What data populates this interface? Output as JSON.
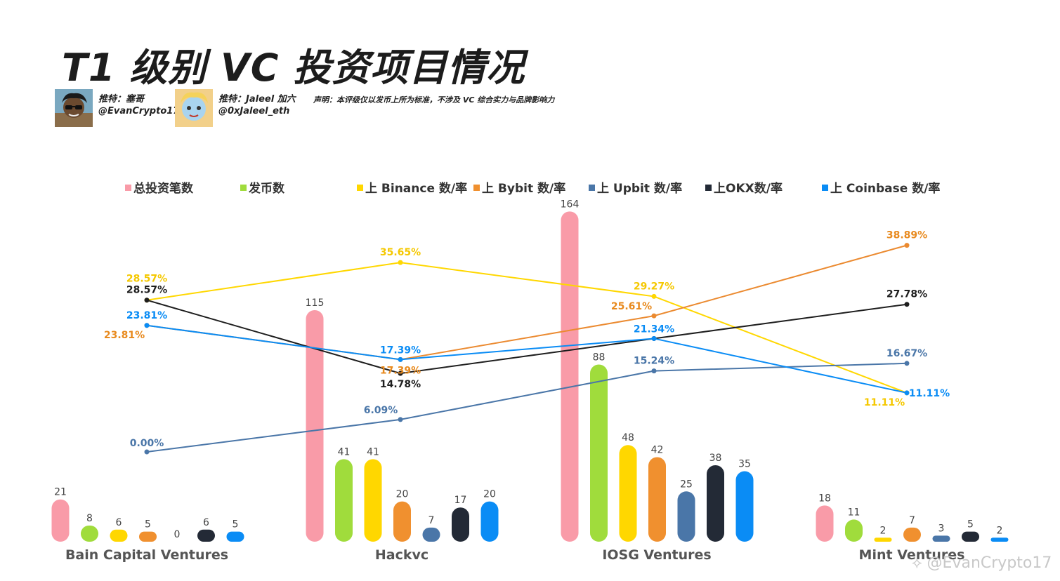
{
  "header": {
    "title": "T1 级别 VC 投资项目情况",
    "author1_line1": "推特：塞哥",
    "author1_line2": "@EvanCrypto17",
    "author2_line1": "推特：Jaleel 加六",
    "author2_line2": "@0xJaleel_eth",
    "disclaimer": "声明：本评级仅以发币上所为标准，不涉及 VC 综合实力与品牌影响力"
  },
  "watermark": "@EvanCrypto17",
  "chart_data": {
    "type": "bar",
    "categories": [
      "Bain Capital Ventures",
      "Hackvc",
      "IOSG Ventures",
      "Mint Ventures"
    ],
    "bar_series": [
      {
        "name": "总投资笔数",
        "color": "#F99BA8",
        "values": [
          21,
          115,
          164,
          18
        ]
      },
      {
        "name": "发币数",
        "color": "#A0DC3C",
        "values": [
          8,
          41,
          88,
          11
        ]
      },
      {
        "name": "上 Binance 数/率",
        "color": "#FFD700",
        "values": [
          6,
          41,
          48,
          2
        ]
      },
      {
        "name": "上 Bybit 数/率",
        "color": "#F0902F",
        "values": [
          5,
          20,
          42,
          7
        ]
      },
      {
        "name": "上 Upbit 数/率",
        "color": "#4A76A8",
        "values": [
          0,
          7,
          25,
          3
        ]
      },
      {
        "name": "上OKX数/率",
        "color": "#232A36",
        "values": [
          6,
          17,
          38,
          5
        ]
      },
      {
        "name": "上 Coinbase 数/率",
        "color": "#0A8CF5",
        "values": [
          5,
          20,
          35,
          2
        ]
      }
    ],
    "line_series": [
      {
        "name": "上 Binance 数/率",
        "color": "#FFD700",
        "label_color": "#F5C800",
        "values": [
          28.57,
          35.65,
          29.27,
          11.11
        ],
        "labels": [
          "28.57%",
          "35.65%",
          "29.27%",
          "11.11%"
        ]
      },
      {
        "name": "上 Bybit 数/率",
        "color": "#EB8A30",
        "label_color": "#E88A1E",
        "values": [
          23.81,
          17.39,
          25.61,
          38.89
        ],
        "labels": [
          "23.81%",
          "17.39%",
          "25.61%",
          "38.89%"
        ]
      },
      {
        "name": "上 Upbit 数/率",
        "color": "#4A76A8",
        "label_color": "#4A76A8",
        "values": [
          0.0,
          6.09,
          15.24,
          16.67
        ],
        "labels": [
          "0.00%",
          "6.09%",
          "15.24%",
          "16.67%"
        ]
      },
      {
        "name": "上OKX数/率",
        "color": "#1E1E1E",
        "label_color": "#1E1E1E",
        "values": [
          28.57,
          14.78,
          21.34,
          27.78
        ],
        "labels": [
          "28.57%",
          "14.78%",
          "",
          "27.78%"
        ]
      },
      {
        "name": "上 Coinbase 数/率",
        "color": "#0A8CF5",
        "label_color": "#0A8CF5",
        "values": [
          23.81,
          17.39,
          21.34,
          11.11
        ],
        "labels": [
          "23.81%",
          "17.39%",
          "21.34%",
          "11.11%"
        ]
      }
    ],
    "legend": [
      "总投资笔数",
      "发币数",
      "上 Binance 数/率",
      "上 Bybit 数/率",
      "上 Upbit 数/率",
      "上OKX数/率",
      "上 Coinbase 数/率"
    ],
    "legend_position": "top",
    "grid": false
  }
}
